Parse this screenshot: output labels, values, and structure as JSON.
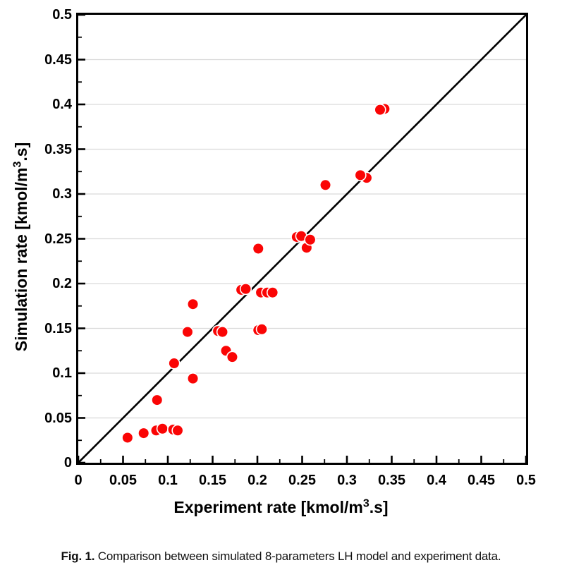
{
  "figure": {
    "background": "#ffffff"
  },
  "axes": {
    "x_title": {
      "pre": "Experiment rate [kmol/m",
      "sup": "3",
      "post": ".s]"
    },
    "y_title": {
      "pre": "Simulation rate [kmol/m",
      "sup": "3",
      "post": ".s]"
    }
  },
  "caption": {
    "label": "Fig. 1.",
    "text": " Comparison between simulated 8-parameters LH model and experiment data."
  },
  "chart_data": {
    "type": "scatter",
    "title": "",
    "xlabel": "Experiment rate [kmol/m³.s]",
    "ylabel": "Simulation rate [kmol/m³.s]",
    "xlim": [
      0,
      0.5
    ],
    "ylim": [
      0,
      0.5
    ],
    "x_major_ticks": [
      0,
      0.05,
      0.1,
      0.15,
      0.2,
      0.25,
      0.3,
      0.35,
      0.4,
      0.45,
      0.5
    ],
    "x_tick_labels": [
      "0",
      "0.05",
      "0.1",
      "0.15",
      "0.2",
      "0.25",
      "0.3",
      "0.35",
      "0.4",
      "0.45",
      "0.5"
    ],
    "y_major_ticks": [
      0,
      0.05,
      0.1,
      0.15,
      0.2,
      0.25,
      0.3,
      0.35,
      0.4,
      0.45,
      0.5
    ],
    "y_tick_labels": [
      "0",
      "0.05",
      "0.1",
      "0.15",
      "0.2",
      "0.25",
      "0.3",
      "0.35",
      "0.4",
      "0.45",
      "0.5"
    ],
    "grid": "horizontal-major-only",
    "legend": "none",
    "parity_line": {
      "from": [
        0,
        0
      ],
      "to": [
        0.5,
        0.5
      ],
      "color": "#000000",
      "width": 2.6
    },
    "series": [
      {
        "marker": "circle",
        "color": "#fa0505",
        "edge_color": "#ffffff",
        "points": [
          [
            0.055,
            0.028
          ],
          [
            0.073,
            0.033
          ],
          [
            0.087,
            0.036
          ],
          [
            0.094,
            0.038
          ],
          [
            0.106,
            0.037
          ],
          [
            0.111,
            0.036
          ],
          [
            0.088,
            0.07
          ],
          [
            0.107,
            0.111
          ],
          [
            0.128,
            0.094
          ],
          [
            0.122,
            0.146
          ],
          [
            0.128,
            0.177
          ],
          [
            0.156,
            0.147
          ],
          [
            0.161,
            0.146
          ],
          [
            0.165,
            0.125
          ],
          [
            0.172,
            0.118
          ],
          [
            0.182,
            0.193
          ],
          [
            0.187,
            0.194
          ],
          [
            0.201,
            0.148
          ],
          [
            0.205,
            0.149
          ],
          [
            0.204,
            0.19
          ],
          [
            0.211,
            0.19
          ],
          [
            0.217,
            0.19
          ],
          [
            0.201,
            0.239
          ],
          [
            0.244,
            0.252
          ],
          [
            0.249,
            0.253
          ],
          [
            0.255,
            0.24
          ],
          [
            0.259,
            0.249
          ],
          [
            0.276,
            0.31
          ],
          [
            0.322,
            0.318
          ],
          [
            0.315,
            0.321
          ],
          [
            0.342,
            0.395
          ],
          [
            0.337,
            0.394
          ]
        ]
      }
    ],
    "style": {
      "frame_color": "#000000",
      "grid_color": "#d9d9d9",
      "marker_color": "#fa0505",
      "marker_edge_color": "#ffffff",
      "text_color": "#000000"
    }
  }
}
